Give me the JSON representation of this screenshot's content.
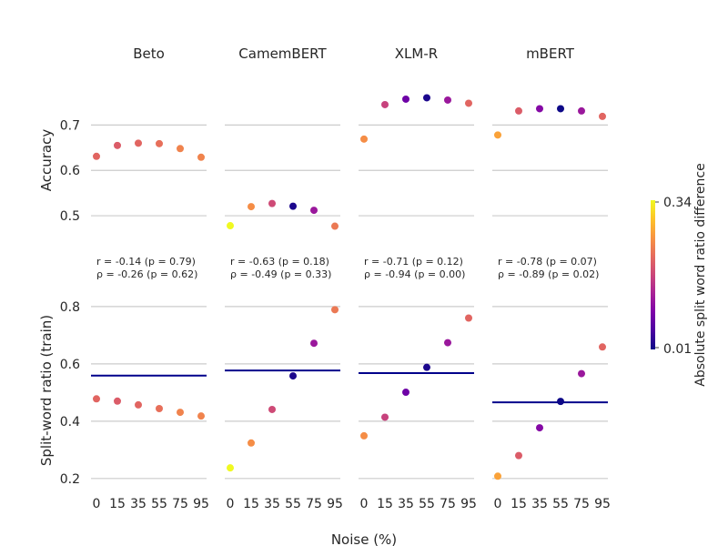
{
  "figure": {
    "xlabel": "Noise (%)",
    "row_labels": [
      "Accuracy",
      "Split-word ratio (train)"
    ],
    "colorbar": {
      "label": "Absolute split word ratio difference",
      "min_label": "0.01",
      "max_label": "0.34",
      "min": 0.01,
      "max": 0.34,
      "colormap": "plasma"
    },
    "grid_color": "#cccccc",
    "baseline_color": "#00008b"
  },
  "chart_data": [
    {
      "type": "scatter",
      "model": "Beto",
      "x": [
        0,
        15,
        35,
        55,
        75,
        95
      ],
      "accuracy": [
        0.631,
        0.655,
        0.66,
        0.659,
        0.648,
        0.629
      ],
      "split_ratio": [
        0.478,
        0.47,
        0.457,
        0.444,
        0.431,
        0.418
      ],
      "baseline": 0.559,
      "color_value": [
        0.21,
        0.2,
        0.21,
        0.22,
        0.24,
        0.24
      ],
      "r_text": "r = -0.14 (p = 0.79)",
      "rho_text": "ρ = -0.26 (p = 0.62)"
    },
    {
      "type": "scatter",
      "model": "CamemBERT",
      "x": [
        0,
        15,
        35,
        55,
        75,
        95
      ],
      "accuracy": [
        0.478,
        0.52,
        0.527,
        0.521,
        0.512,
        0.477
      ],
      "split_ratio": [
        0.237,
        0.324,
        0.441,
        0.558,
        0.672,
        0.789
      ],
      "baseline": 0.577,
      "color_value": [
        0.34,
        0.25,
        0.18,
        0.02,
        0.12,
        0.23
      ],
      "r_text": "r = -0.63 (p = 0.18)",
      "rho_text": "ρ = -0.49 (p = 0.33)"
    },
    {
      "type": "scatter",
      "model": "XLM-R",
      "x": [
        0,
        15,
        35,
        55,
        75,
        95
      ],
      "accuracy": [
        0.669,
        0.745,
        0.757,
        0.76,
        0.755,
        0.748
      ],
      "split_ratio": [
        0.349,
        0.414,
        0.501,
        0.588,
        0.674,
        0.76
      ],
      "baseline": 0.568,
      "color_value": [
        0.25,
        0.17,
        0.08,
        0.02,
        0.12,
        0.21
      ],
      "r_text": "r = -0.71 (p = 0.12)",
      "rho_text": "ρ = -0.94 (p = 0.00)"
    },
    {
      "type": "scatter",
      "model": "mBERT",
      "x": [
        0,
        15,
        35,
        55,
        75,
        95
      ],
      "accuracy": [
        0.678,
        0.731,
        0.736,
        0.736,
        0.731,
        0.719
      ],
      "split_ratio": [
        0.208,
        0.28,
        0.377,
        0.469,
        0.566,
        0.659
      ],
      "baseline": 0.466,
      "color_value": [
        0.27,
        0.2,
        0.1,
        0.01,
        0.12,
        0.21
      ],
      "r_text": "r = -0.78 (p = 0.07)",
      "rho_text": "ρ = -0.89 (p = 0.02)"
    }
  ],
  "axes": {
    "x_ticks": [
      "0",
      "15",
      "35",
      "55",
      "75",
      "95"
    ],
    "accuracy_ticks": [
      0.5,
      0.6,
      0.7
    ],
    "accuracy_tick_labels": [
      "0.5",
      "0.6",
      "0.7"
    ],
    "accuracy_range": [
      0.45,
      0.775
    ],
    "split_ticks": [
      0.2,
      0.4,
      0.6,
      0.8
    ],
    "split_tick_labels": [
      "0.2",
      "0.4",
      "0.6",
      "0.8"
    ],
    "split_range": [
      0.155,
      0.86
    ]
  }
}
